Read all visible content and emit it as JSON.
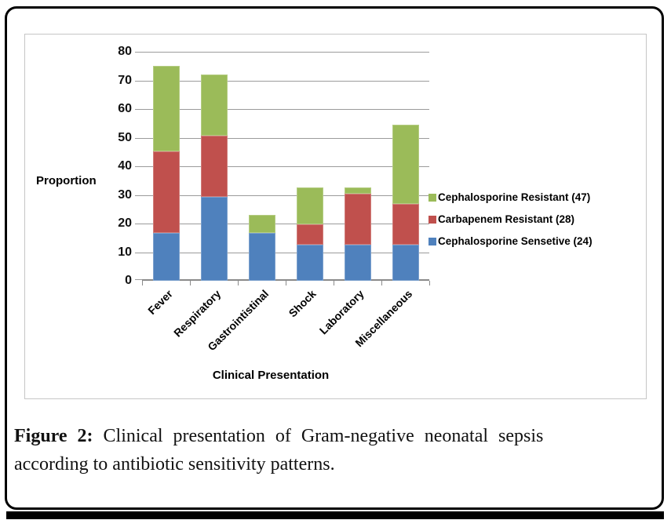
{
  "figure": {
    "caption": {
      "label": "Figure 2:",
      "line1_rest": " Clinical presentation of Gram-negative neonatal sepsis",
      "line2": "according to antibiotic sensitivity patterns."
    }
  },
  "chart_data": {
    "type": "bar",
    "stacked": true,
    "title": "",
    "xlabel": "Clinical Presentation",
    "ylabel": "Proportion",
    "ylim": [
      0,
      80
    ],
    "ytick_step": 10,
    "grid": true,
    "legend_position": "right",
    "categories": [
      "Fever",
      "Respiratory",
      "Gastrointistinal",
      "Shock",
      "Laboratory",
      "Miscellaneous"
    ],
    "series": [
      {
        "name": "Cephalosporine Sensetive (24)",
        "color": "#4F81BD",
        "values": [
          16.7,
          29.2,
          16.7,
          12.5,
          12.5,
          12.5
        ]
      },
      {
        "name": "Carbapenem Resistant (28)",
        "color": "#C0504D",
        "values": [
          28.6,
          21.4,
          0,
          7.1,
          17.9,
          14.3
        ]
      },
      {
        "name": "Cephalosporine Resistant (47)",
        "color": "#9BBB59",
        "values": [
          29.8,
          21.3,
          6.4,
          12.8,
          2.1,
          27.7
        ]
      }
    ],
    "stack_totals": [
      75.1,
      71.9,
      23.1,
      32.4,
      32.5,
      54.5
    ],
    "colors": {
      "gridline": "#9b9b9b",
      "axis": "#8a8a8a",
      "frame": "#000000",
      "chart_border": "#c6c6c6"
    }
  }
}
